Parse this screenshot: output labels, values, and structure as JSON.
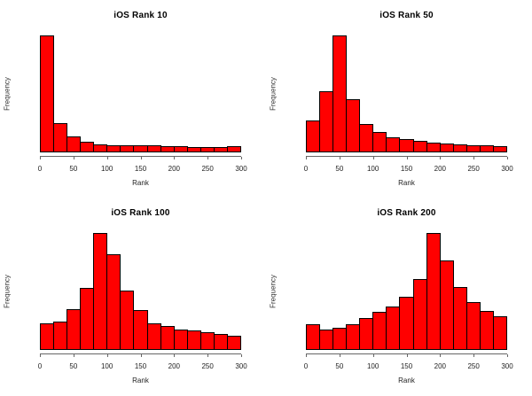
{
  "page": {
    "background": "#ffffff",
    "layout": "2x2-histogram-grid"
  },
  "colors": {
    "bar_fill": "#ff0000",
    "bar_border": "#000000",
    "axis": "#666666",
    "text": "#000000"
  },
  "chart_data": [
    {
      "type": "bar",
      "subtype": "histogram",
      "title": "iOS Rank 10",
      "xlabel": "Rank",
      "ylabel": "Frequency",
      "xlim": [
        0,
        300
      ],
      "xticks": [
        0,
        50,
        100,
        150,
        200,
        250,
        300
      ],
      "bins": {
        "start": 0,
        "end": 300,
        "width": 20,
        "count": 15
      },
      "y_axis_labels_visible": false,
      "rel_heights": [
        1.0,
        0.245,
        0.13,
        0.085,
        0.063,
        0.05,
        0.053,
        0.05,
        0.05,
        0.042,
        0.046,
        0.038,
        0.038,
        0.04,
        0.042
      ]
    },
    {
      "type": "bar",
      "subtype": "histogram",
      "title": "iOS Rank 50",
      "xlabel": "Rank",
      "ylabel": "Frequency",
      "xlim": [
        0,
        300
      ],
      "xticks": [
        0,
        50,
        100,
        150,
        200,
        250,
        300
      ],
      "bins": {
        "start": 0,
        "end": 300,
        "width": 20,
        "count": 15
      },
      "y_axis_labels_visible": false,
      "rel_heights": [
        0.27,
        0.52,
        1.0,
        0.45,
        0.24,
        0.165,
        0.122,
        0.105,
        0.09,
        0.075,
        0.068,
        0.06,
        0.053,
        0.053,
        0.047
      ]
    },
    {
      "type": "bar",
      "subtype": "histogram",
      "title": "iOS Rank 100",
      "xlabel": "Rank",
      "ylabel": "Frequency",
      "xlim": [
        0,
        300
      ],
      "xticks": [
        0,
        50,
        100,
        150,
        200,
        250,
        300
      ],
      "bins": {
        "start": 0,
        "end": 300,
        "width": 20,
        "count": 15
      },
      "y_axis_labels_visible": false,
      "rel_heights": [
        0.22,
        0.24,
        0.34,
        0.53,
        1.0,
        0.82,
        0.505,
        0.335,
        0.225,
        0.195,
        0.165,
        0.158,
        0.145,
        0.128,
        0.115
      ]
    },
    {
      "type": "bar",
      "subtype": "histogram",
      "title": "iOS Rank 200",
      "xlabel": "Rank",
      "ylabel": "Frequency",
      "xlim": [
        0,
        300
      ],
      "xticks": [
        0,
        50,
        100,
        150,
        200,
        250,
        300
      ],
      "bins": {
        "start": 0,
        "end": 300,
        "width": 20,
        "count": 15
      },
      "y_axis_labels_visible": false,
      "rel_heights": [
        0.215,
        0.17,
        0.18,
        0.21,
        0.27,
        0.32,
        0.37,
        0.45,
        0.6,
        1.0,
        0.76,
        0.535,
        0.405,
        0.33,
        0.28
      ]
    }
  ]
}
